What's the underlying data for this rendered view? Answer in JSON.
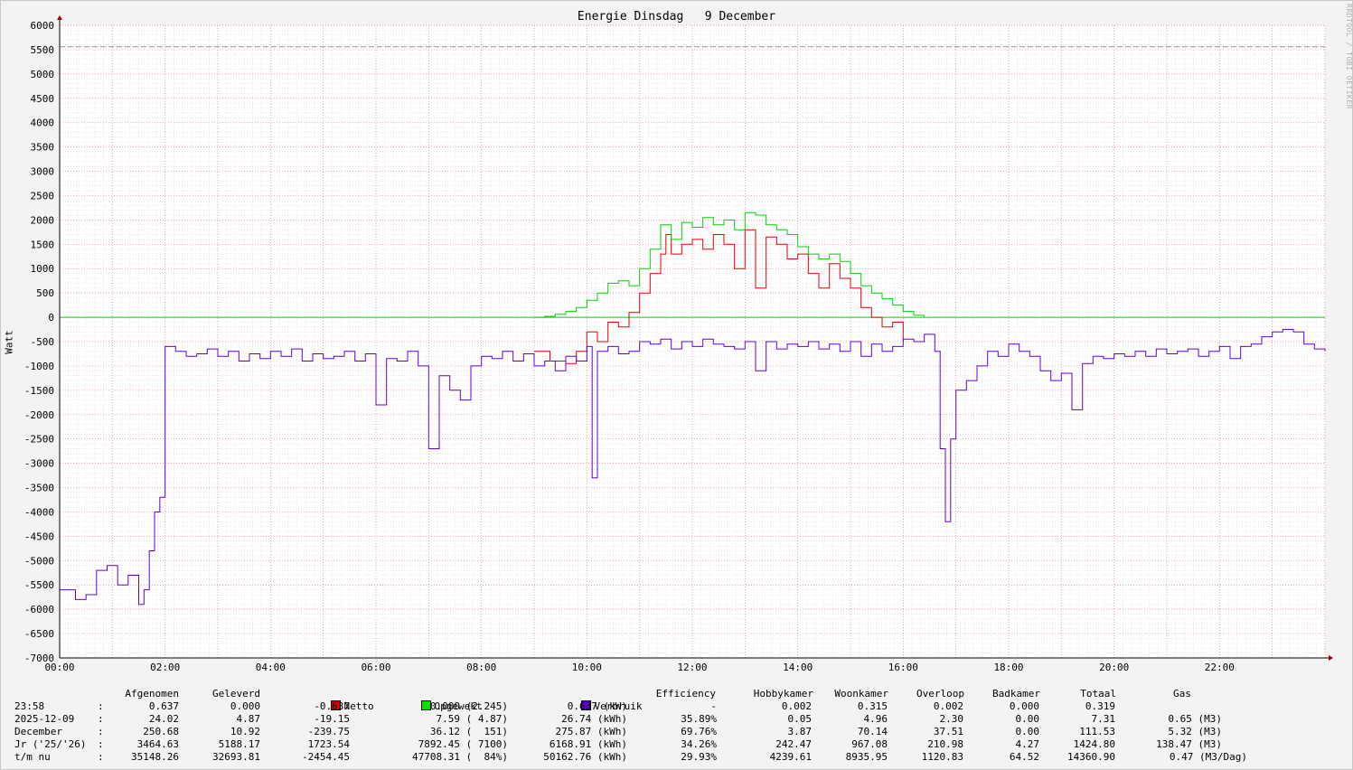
{
  "window": {
    "title": "Energie Dinsdag   9 December",
    "ylabel": "Watt",
    "side_credit": "RRDTOOL / TOBI OETIKER"
  },
  "colors": {
    "netto": "#e00000",
    "opgewekt": "#00d000",
    "verbruik": "#6000d8",
    "grid_major": "#e08080",
    "grid_minor": "#d8d8d8",
    "hrule": "#909090"
  },
  "chart_data": {
    "type": "line",
    "title": "Energie Dinsdag   9 December",
    "ylabel": "Watt",
    "xlabel": "",
    "ylim": [
      -7000,
      6000
    ],
    "xlim_hours": [
      0,
      24
    ],
    "grid": true,
    "y_ticks": [
      "6000",
      "5500",
      "5000",
      "4500",
      "4000",
      "3500",
      "3000",
      "2500",
      "2000",
      "1500",
      "1000",
      "500",
      "0",
      "-500",
      "-1000",
      "-1500",
      "-2000",
      "-2500",
      "-3000",
      "-3500",
      "-4000",
      "-4500",
      "-5000",
      "-5500",
      "-6000",
      "-6500",
      "-7000"
    ],
    "x_ticks": [
      "00:00",
      "02:00",
      "04:00",
      "06:00",
      "08:00",
      "10:00",
      "12:00",
      "14:00",
      "16:00",
      "18:00",
      "20:00",
      "22:00"
    ],
    "reference_line": 5560,
    "series": [
      {
        "name": "Netto",
        "color": "#e00000",
        "x": [
          9.0,
          9.3,
          9.6,
          9.8,
          10.0,
          10.2,
          10.4,
          10.6,
          10.8,
          11.0,
          11.2,
          11.4,
          11.5,
          11.6,
          11.8,
          12.0,
          12.2,
          12.4,
          12.6,
          12.8,
          13.0,
          13.2,
          13.4,
          13.6,
          13.8,
          14.0,
          14.2,
          14.4,
          14.6,
          14.8,
          15.0,
          15.2,
          15.4,
          15.6,
          15.8,
          16.0
        ],
        "y": [
          -700,
          -900,
          -950,
          -700,
          -300,
          -500,
          -100,
          -200,
          100,
          500,
          900,
          1300,
          1700,
          1300,
          1500,
          1600,
          1400,
          1700,
          1500,
          1000,
          1800,
          600,
          1650,
          1500,
          1200,
          1300,
          900,
          600,
          1100,
          800,
          600,
          200,
          0,
          -200,
          -100,
          -500
        ]
      },
      {
        "name": "Opgewekt",
        "color": "#00d000",
        "x": [
          9.0,
          9.2,
          9.4,
          9.6,
          9.8,
          10.0,
          10.2,
          10.4,
          10.6,
          10.8,
          11.0,
          11.2,
          11.4,
          11.6,
          11.8,
          12.0,
          12.2,
          12.4,
          12.6,
          12.8,
          13.0,
          13.2,
          13.4,
          13.6,
          13.8,
          14.0,
          14.2,
          14.4,
          14.6,
          14.8,
          15.0,
          15.2,
          15.4,
          15.6,
          15.8,
          16.0,
          16.2,
          16.4
        ],
        "y": [
          0,
          20,
          60,
          120,
          200,
          350,
          500,
          700,
          750,
          650,
          1000,
          1400,
          1900,
          1600,
          1950,
          1850,
          2050,
          1900,
          2000,
          1800,
          2150,
          2100,
          1900,
          1800,
          1700,
          1450,
          1300,
          1200,
          1300,
          1150,
          900,
          650,
          500,
          380,
          250,
          120,
          40,
          0
        ]
      },
      {
        "name": "Verbruik",
        "color": "#6000d8",
        "x": [
          0.0,
          0.3,
          0.5,
          0.7,
          0.9,
          1.1,
          1.3,
          1.5,
          1.6,
          1.7,
          1.8,
          1.9,
          2.0,
          2.2,
          2.4,
          2.6,
          2.8,
          3.0,
          3.2,
          3.4,
          3.6,
          3.8,
          4.0,
          4.2,
          4.4,
          4.6,
          4.8,
          5.0,
          5.2,
          5.4,
          5.6,
          5.8,
          6.0,
          6.2,
          6.4,
          6.6,
          6.8,
          7.0,
          7.2,
          7.4,
          7.6,
          7.8,
          8.0,
          8.2,
          8.4,
          8.6,
          8.8,
          9.0,
          9.2,
          9.4,
          9.6,
          9.8,
          10.0,
          10.1,
          10.2,
          10.4,
          10.6,
          10.8,
          11.0,
          11.2,
          11.4,
          11.6,
          11.8,
          12.0,
          12.2,
          12.4,
          12.6,
          12.8,
          13.0,
          13.2,
          13.4,
          13.6,
          13.8,
          14.0,
          14.2,
          14.4,
          14.6,
          14.8,
          15.0,
          15.2,
          15.4,
          15.6,
          15.8,
          16.0,
          16.2,
          16.4,
          16.6,
          16.7,
          16.8,
          16.9,
          17.0,
          17.2,
          17.4,
          17.6,
          17.8,
          18.0,
          18.2,
          18.4,
          18.6,
          18.8,
          19.0,
          19.2,
          19.4,
          19.6,
          19.8,
          20.0,
          20.2,
          20.4,
          20.6,
          20.8,
          21.0,
          21.2,
          21.4,
          21.6,
          21.8,
          22.0,
          22.2,
          22.4,
          22.6,
          22.8,
          23.0,
          23.2,
          23.4,
          23.6,
          23.8,
          24.0
        ],
        "y": [
          -5600,
          -5800,
          -5700,
          -5200,
          -5100,
          -5500,
          -5300,
          -5900,
          -5600,
          -4800,
          -4000,
          -3700,
          -600,
          -700,
          -800,
          -750,
          -650,
          -800,
          -700,
          -900,
          -750,
          -850,
          -700,
          -800,
          -650,
          -900,
          -750,
          -850,
          -800,
          -700,
          -900,
          -750,
          -1800,
          -850,
          -900,
          -700,
          -1000,
          -2700,
          -1200,
          -1500,
          -1700,
          -1000,
          -800,
          -850,
          -700,
          -900,
          -750,
          -1000,
          -900,
          -1100,
          -800,
          -900,
          -600,
          -3300,
          -700,
          -600,
          -750,
          -700,
          -500,
          -550,
          -450,
          -650,
          -500,
          -600,
          -450,
          -550,
          -600,
          -650,
          -500,
          -1100,
          -500,
          -650,
          -550,
          -600,
          -500,
          -650,
          -550,
          -700,
          -500,
          -800,
          -550,
          -700,
          -600,
          -450,
          -500,
          -350,
          -700,
          -2700,
          -4200,
          -2500,
          -1500,
          -1300,
          -1000,
          -700,
          -800,
          -550,
          -700,
          -800,
          -1100,
          -1300,
          -1150,
          -1900,
          -950,
          -800,
          -850,
          -750,
          -800,
          -700,
          -800,
          -650,
          -750,
          -700,
          -650,
          -800,
          -700,
          -600,
          -850,
          -600,
          -550,
          -400,
          -300,
          -250,
          -300,
          -550,
          -650,
          -700
        ]
      }
    ]
  },
  "legend": {
    "headers": {
      "afgenomen": "Afgenomen",
      "geleverd": "Geleverd",
      "netto": "Netto",
      "opgewekt": "Opgewekt",
      "verbruik": "Verbruik",
      "efficiency": "Efficiency",
      "hobbykamer": "Hobbykamer",
      "woonkamer": "Woonkamer",
      "overloop": "Overloop",
      "badkamer": "Badkamer",
      "totaal": "Totaal",
      "gas": "Gas"
    },
    "rows": [
      {
        "label": "23:58",
        "sep": ":",
        "afgenomen": "0.637",
        "geleverd": "0.000",
        "netto": "-0.637",
        "opgewekt": "0.000 (2.245)",
        "verbruik": "0.637 (kW)",
        "efficiency": "-",
        "hobbykamer": "0.002",
        "woonkamer": "0.315",
        "overloop": "0.002",
        "badkamer": "0.000",
        "totaal": "0.319",
        "gas": ""
      },
      {
        "label": "2025-12-09",
        "sep": ":",
        "afgenomen": "24.02",
        "geleverd": "4.87",
        "netto": "-19.15",
        "opgewekt": "7.59 ( 4.87)",
        "verbruik": "26.74 (kWh)",
        "efficiency": "35.89%",
        "hobbykamer": "0.05",
        "woonkamer": "4.96",
        "overloop": "2.30",
        "badkamer": "0.00",
        "totaal": "7.31",
        "gas": "0.65 (M3)"
      },
      {
        "label": "December",
        "sep": ":",
        "afgenomen": "250.68",
        "geleverd": "10.92",
        "netto": "-239.75",
        "opgewekt": "36.12 (  151)",
        "verbruik": "275.87 (kWh)",
        "efficiency": "69.76%",
        "hobbykamer": "3.87",
        "woonkamer": "70.14",
        "overloop": "37.51",
        "badkamer": "0.00",
        "totaal": "111.53",
        "gas": "5.32 (M3)"
      },
      {
        "label": "Jr ('25/'26)",
        "sep": ":",
        "afgenomen": "3464.63",
        "geleverd": "5188.17",
        "netto": "1723.54",
        "opgewekt": "7892.45 ( 7100)",
        "verbruik": "6168.91 (kWh)",
        "efficiency": "34.26%",
        "hobbykamer": "242.47",
        "woonkamer": "967.08",
        "overloop": "210.98",
        "badkamer": "4.27",
        "totaal": "1424.80",
        "gas": "138.47 (M3)"
      },
      {
        "label": "t/m nu",
        "sep": ":",
        "afgenomen": "35148.26",
        "geleverd": "32693.81",
        "netto": "-2454.45",
        "opgewekt": "47708.31 (  84%)",
        "verbruik": "50162.76 (kWh)",
        "efficiency": "29.93%",
        "hobbykamer": "4239.61",
        "woonkamer": "8935.95",
        "overloop": "1120.83",
        "badkamer": "64.52",
        "totaal": "14360.90",
        "gas": "0.47 (M3/Dag)"
      }
    ]
  }
}
